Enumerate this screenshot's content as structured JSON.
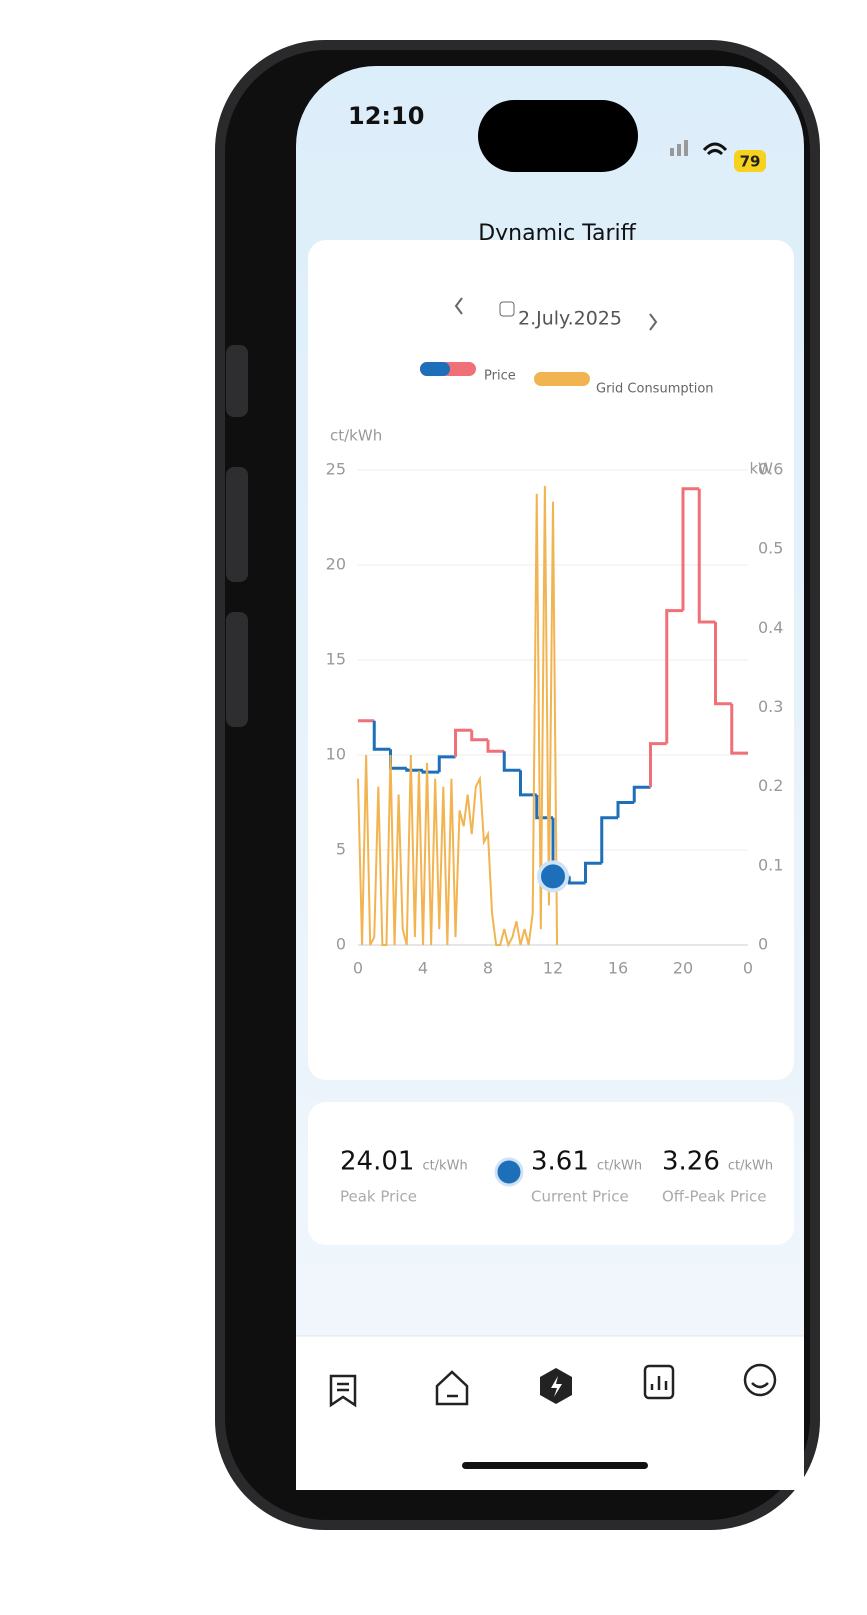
{
  "status_bar": {
    "time": "12:10",
    "battery": "79"
  },
  "header": {
    "title": "Dynamic Tariff"
  },
  "date": "2.July.2025",
  "chart_data": {
    "type": "line",
    "y_label": "ct/kWh",
    "y2_label": "kW",
    "xlim": [
      0,
      24
    ],
    "xticks": [
      0,
      4,
      8,
      12,
      16,
      20,
      {
        "value": 24,
        "label": "0"
      }
    ],
    "ylim": [
      0,
      25
    ],
    "yticks": [
      0,
      5,
      10,
      15,
      20,
      25
    ],
    "y2lim": [
      0,
      0.6
    ],
    "y2ticks": [
      0,
      0.1,
      0.2,
      0.3,
      0.4,
      0.5,
      0.6
    ],
    "grid": true,
    "series": [
      {
        "name": "Price",
        "step": true,
        "color": [
          "#f07078",
          "#1e6fba"
        ],
        "x": [
          0,
          1,
          2,
          3,
          4,
          5,
          6,
          7,
          8,
          9,
          10,
          11,
          12,
          13,
          14,
          15,
          16,
          17,
          18,
          19,
          20,
          21,
          22,
          23
        ],
        "colors": [
          "#f07078",
          "#1e6fba",
          "#1e6fba",
          "#1e6fba",
          "#1e6fba",
          "#1e6fba",
          "#f07078",
          "#f07078",
          "#f07078",
          "#1e6fba",
          "#1e6fba",
          "#1e6fba",
          "#1e6fba",
          "#1e6fba",
          "#1e6fba",
          "#1e6fba",
          "#1e6fba",
          "#1e6fba",
          "#f07078",
          "#f07078",
          "#f07078",
          "#f07078",
          "#f07078",
          "#f07078"
        ],
        "values": [
          11.8,
          10.3,
          9.3,
          9.2,
          9.1,
          9.9,
          11.3,
          10.8,
          10.2,
          9.2,
          7.9,
          6.7,
          3.61,
          3.26,
          4.3,
          6.7,
          7.5,
          8.3,
          10.6,
          17.6,
          24.01,
          17.0,
          12.7,
          10.1
        ]
      },
      {
        "name": "Grid Consumption",
        "axis": "y2",
        "color": "#f2b450",
        "x": [
          0,
          0.25,
          0.5,
          0.75,
          1,
          1.25,
          1.5,
          1.75,
          2,
          2.25,
          2.5,
          2.75,
          3,
          3.25,
          3.5,
          3.75,
          4,
          4.25,
          4.5,
          4.75,
          5,
          5.25,
          5.5,
          5.75,
          6,
          6.25,
          6.5,
          6.75,
          7,
          7.25,
          7.5,
          7.75,
          8,
          8.25,
          8.5,
          8.75,
          9,
          9.25,
          9.5,
          9.75,
          10,
          10.25,
          10.5,
          10.75,
          11,
          11.25,
          11.5,
          11.75,
          12,
          12.25
        ],
        "values": [
          0.21,
          0,
          0.24,
          0,
          0.01,
          0.2,
          0,
          0,
          0.24,
          0,
          0.19,
          0.02,
          0,
          0.24,
          0.01,
          0.22,
          0,
          0.23,
          0,
          0.21,
          0.02,
          0.2,
          0,
          0.21,
          0.01,
          0.17,
          0.15,
          0.19,
          0.14,
          0.2,
          0.21,
          0.13,
          0.14,
          0.04,
          0,
          0,
          0.02,
          0,
          0.01,
          0.03,
          0,
          0.02,
          0,
          0.04,
          0.57,
          0.02,
          0.58,
          0.05,
          0.56,
          0
        ]
      }
    ]
  },
  "summary": [
    {
      "value": 24.01,
      "unit": "ct/kWh",
      "label": "Peak Price"
    },
    {
      "value": 3.61,
      "unit": "ct/kWh",
      "label": "Current Price"
    },
    {
      "value": 3.26,
      "unit": "ct/kWh",
      "label": "Off-Peak Price"
    }
  ]
}
